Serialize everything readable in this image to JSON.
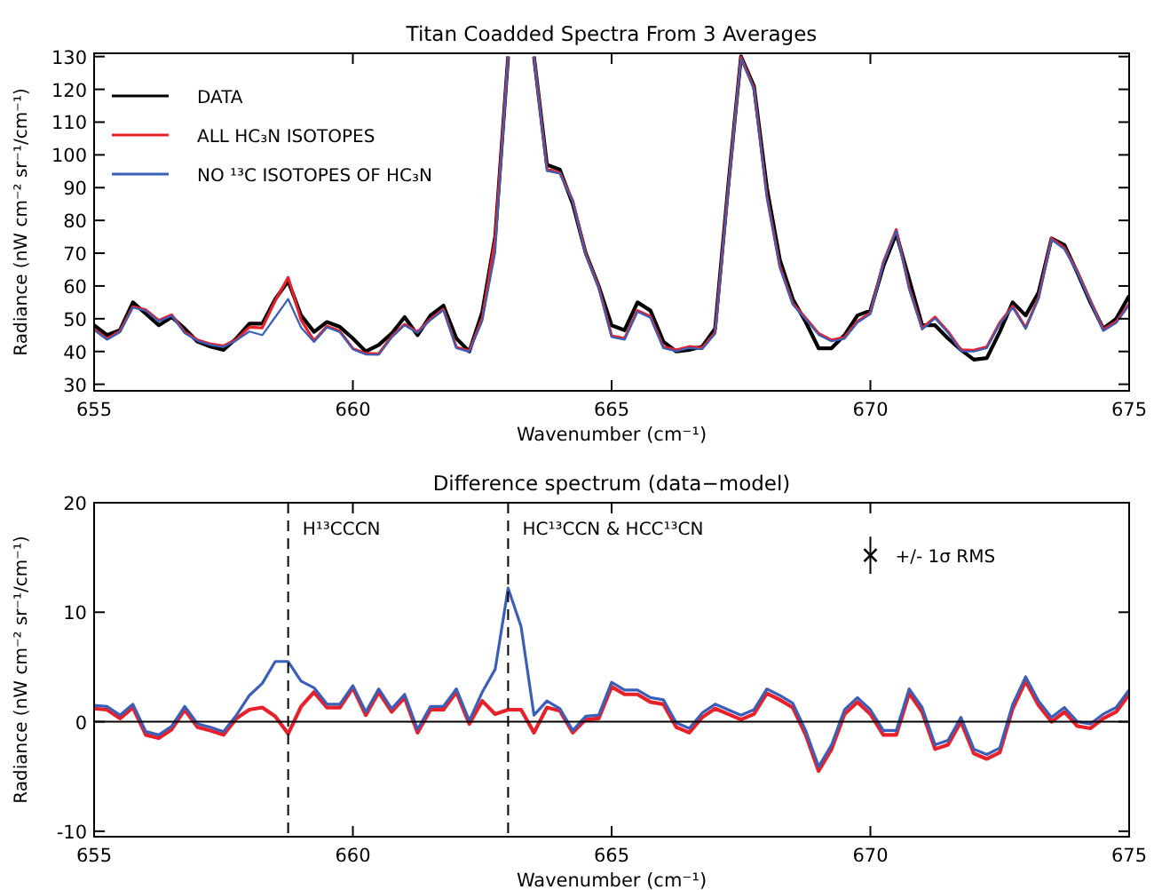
{
  "chart_data": [
    {
      "type": "line",
      "title": "Titan Coadded Spectra From 3 Averages",
      "xlabel": "Wavenumber (cm⁻¹)",
      "ylabel": "Radiance (nW cm⁻² sr⁻¹/cm⁻¹)",
      "x": [
        655,
        655.25,
        655.5,
        655.75,
        656,
        656.25,
        656.5,
        656.75,
        657,
        657.25,
        657.5,
        657.75,
        658,
        658.25,
        658.5,
        658.75,
        659,
        659.25,
        659.5,
        659.75,
        660,
        660.25,
        660.5,
        660.75,
        661,
        661.25,
        661.5,
        661.75,
        662,
        662.25,
        662.5,
        662.75,
        663,
        663.25,
        663.5,
        663.75,
        664,
        664.25,
        664.5,
        664.75,
        665,
        665.25,
        665.5,
        665.75,
        666,
        666.25,
        666.5,
        666.75,
        667,
        667.25,
        667.5,
        667.75,
        668,
        668.25,
        668.5,
        668.75,
        669,
        669.25,
        669.5,
        669.75,
        670,
        670.25,
        670.5,
        670.75,
        671,
        671.25,
        671.5,
        671.75,
        672,
        672.25,
        672.5,
        672.75,
        673,
        673.25,
        673.5,
        673.75,
        674,
        674.25,
        674.5,
        674.75,
        675
      ],
      "series": [
        {
          "name": "DATA",
          "color": "#000000",
          "values": [
            48,
            45,
            46.5,
            55,
            51.5,
            48,
            50.5,
            47,
            43,
            41.5,
            40.5,
            44,
            48.5,
            48.5,
            56,
            61.5,
            51,
            46,
            49,
            47.5,
            44,
            40,
            42,
            45.5,
            50.5,
            45,
            51,
            54,
            44,
            40,
            52,
            75,
            130,
            null,
            130,
            97,
            95.5,
            85,
            70,
            60,
            48,
            46.5,
            55,
            52.5,
            43,
            40,
            40.5,
            41.5,
            47,
            90,
            130,
            121,
            90,
            68,
            56,
            49,
            41,
            41,
            45,
            51,
            52.5,
            66,
            76,
            62,
            48,
            48,
            44,
            40.5,
            37.5,
            38,
            46,
            55,
            51,
            58,
            74.5,
            72.5,
            64,
            55,
            47,
            50,
            57
          ]
        },
        {
          "name": "ALL HC₃N ISOTOPES",
          "color": "#e8202a",
          "values": [
            46.8,
            43.9,
            46.2,
            53.7,
            52.7,
            49.5,
            51.2,
            45.9,
            43.5,
            42.3,
            41.7,
            43.7,
            47.4,
            47.2,
            55.5,
            62.6,
            49.6,
            43.3,
            47.7,
            46.2,
            40.9,
            39.4,
            39.3,
            44.6,
            48.3,
            46,
            49.9,
            52.9,
            41.3,
            40.2,
            50.1,
            74.3,
            130,
            null,
            130,
            95.7,
            94.5,
            86,
            69.8,
            59.7,
            44.8,
            44,
            52.5,
            50.7,
            41.4,
            40.5,
            41.5,
            41.1,
            45.8,
            89.3,
            129.8,
            120.3,
            87.4,
            66,
            54.7,
            50.2,
            45.5,
            43.5,
            44.3,
            49.2,
            51.8,
            67.2,
            77.2,
            59.4,
            47.1,
            50.5,
            46.1,
            40.5,
            40.4,
            41.4,
            48.8,
            53.8,
            47.3,
            56.5,
            74.5,
            71.6,
            64.4,
            55.6,
            46.7,
            49.1,
            54.5
          ]
        },
        {
          "name": "NO ¹³C ISOTOPES OF HC₃N",
          "color": "#3a5fb8",
          "values": [
            46.5,
            43.6,
            45.9,
            53.4,
            52.4,
            49.2,
            50.9,
            45.6,
            43.2,
            42,
            41.4,
            43.4,
            46.1,
            45,
            50.5,
            56,
            47.3,
            42.9,
            47.4,
            45.9,
            40.7,
            39.1,
            39,
            44.3,
            48,
            45.7,
            49.6,
            52.6,
            41,
            39.9,
            49.3,
            70.2,
            130,
            null,
            130,
            95.1,
            94.3,
            85.8,
            69.5,
            59.4,
            44.4,
            43.6,
            52.1,
            50.3,
            41,
            40.1,
            41.1,
            40.7,
            45.4,
            88.9,
            129.4,
            119.9,
            87,
            65.6,
            54.3,
            49.8,
            45.1,
            43.1,
            43.9,
            48.8,
            51.4,
            66.8,
            76.8,
            59,
            46.7,
            50.1,
            45.7,
            40.1,
            40,
            41,
            48.4,
            53.4,
            46.9,
            56.1,
            74.1,
            71.2,
            64,
            55.2,
            46.3,
            48.7,
            54.1
          ]
        }
      ],
      "xlim": [
        655,
        675
      ],
      "xticks": [
        655,
        660,
        665,
        670,
        675
      ],
      "ylim": [
        28,
        131
      ],
      "yticks": [
        30,
        40,
        50,
        60,
        70,
        80,
        90,
        100,
        110,
        120,
        130
      ],
      "grid": false,
      "legend": "top left",
      "line_style": "solid",
      "marker": "none"
    },
    {
      "type": "line",
      "title": "Difference spectrum (data−model)",
      "xlabel": "Wavenumber (cm⁻¹)",
      "ylabel": "Radiance (nW cm⁻² sr⁻¹/cm⁻¹)",
      "x": [
        655,
        655.25,
        655.5,
        655.75,
        656,
        656.25,
        656.5,
        656.75,
        657,
        657.25,
        657.5,
        657.75,
        658,
        658.25,
        658.5,
        658.75,
        659,
        659.25,
        659.5,
        659.75,
        660,
        660.25,
        660.5,
        660.75,
        661,
        661.25,
        661.5,
        661.75,
        662,
        662.25,
        662.5,
        662.75,
        663,
        663.25,
        663.5,
        663.75,
        664,
        664.25,
        664.5,
        664.75,
        665,
        665.25,
        665.5,
        665.75,
        666,
        666.25,
        666.5,
        666.75,
        667,
        667.25,
        667.5,
        667.75,
        668,
        668.25,
        668.5,
        668.75,
        669,
        669.25,
        669.5,
        669.75,
        670,
        670.25,
        670.5,
        670.75,
        671,
        671.25,
        671.5,
        671.75,
        672,
        672.25,
        672.5,
        672.75,
        673,
        673.25,
        673.5,
        673.75,
        674,
        674.25,
        674.5,
        674.75,
        675
      ],
      "series": [
        {
          "color": "#e8202a",
          "values": [
            1.2,
            1.1,
            0.3,
            1.3,
            -1.2,
            -1.5,
            -0.7,
            1.1,
            -0.5,
            -0.8,
            -1.2,
            0.3,
            1.1,
            1.3,
            0.5,
            -1.1,
            1.4,
            2.7,
            1.3,
            1.3,
            3.1,
            0.6,
            2.7,
            0.9,
            2.2,
            -1,
            1.1,
            1.1,
            2.7,
            -0.2,
            1.9,
            0.7,
            1.1,
            1.1,
            -1,
            1.3,
            1,
            -1,
            0.2,
            0.3,
            3.2,
            2.5,
            2.5,
            1.8,
            1.6,
            -0.5,
            -1,
            0.4,
            1.2,
            0.7,
            0.2,
            0.7,
            2.6,
            2,
            1.3,
            -1.2,
            -4.5,
            -2.5,
            0.7,
            1.8,
            0.7,
            -1.2,
            -1.2,
            2.6,
            0.9,
            -2.5,
            -2.1,
            0,
            -2.9,
            -3.4,
            -2.8,
            1.2,
            3.7,
            1.5,
            0,
            0.9,
            -0.4,
            -0.6,
            0.3,
            0.9,
            2.5
          ]
        },
        {
          "color": "#3a5fb8",
          "values": [
            1.5,
            1.4,
            0.6,
            1.6,
            -0.9,
            -1.2,
            -0.4,
            1.4,
            -0.2,
            -0.5,
            -0.9,
            0.6,
            2.4,
            3.5,
            5.5,
            5.5,
            3.7,
            3.1,
            1.6,
            1.6,
            3.3,
            0.9,
            3,
            1.2,
            2.5,
            -0.7,
            1.4,
            1.4,
            3,
            0.1,
            2.7,
            4.8,
            12.2,
            8.7,
            0.6,
            1.9,
            1.2,
            -0.8,
            0.5,
            0.6,
            3.6,
            2.9,
            2.9,
            2.2,
            2,
            -0.1,
            -0.6,
            0.8,
            1.6,
            1.1,
            0.6,
            1.1,
            3,
            2.4,
            1.7,
            -0.8,
            -4.1,
            -2.1,
            1.1,
            2.2,
            1.1,
            -0.8,
            -0.8,
            3,
            1.3,
            -2.1,
            -1.7,
            0.4,
            -2.5,
            -3,
            -2.4,
            1.6,
            4.1,
            1.9,
            0.4,
            1.3,
            0,
            -0.2,
            0.7,
            1.3,
            2.9
          ]
        },
        {
          "type": "scatter",
          "name": "+/- 1σ RMS",
          "color": "#000000",
          "marker": "cross",
          "x": [
            670
          ],
          "values": [
            15.2
          ],
          "errors": [
            1.7
          ]
        }
      ],
      "ref_lines": [
        {
          "axis": "y",
          "value": 0,
          "color": "#000000",
          "line_style": "solid"
        },
        {
          "axis": "x",
          "value": 658.75,
          "label": "H¹³CCCN",
          "color": "#000000",
          "line_style": "dashed"
        },
        {
          "axis": "x",
          "value": 663,
          "label": "HC¹³CCN & HCC¹³CN",
          "color": "#000000",
          "line_style": "dashed"
        }
      ],
      "xlim": [
        655,
        675
      ],
      "xticks": [
        655,
        660,
        665,
        670,
        675
      ],
      "ylim": [
        -10.5,
        20
      ],
      "yticks": [
        -10,
        0,
        10,
        20
      ],
      "grid": false,
      "legend": false,
      "line_style": "solid",
      "marker": "none"
    }
  ]
}
